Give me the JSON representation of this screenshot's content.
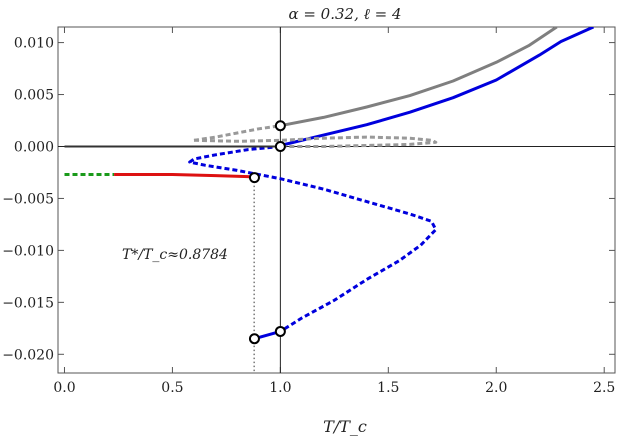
{
  "chart_data": {
    "type": "line",
    "title": "α = 0.32, ℓ = 4",
    "xlabel": "T/T_c",
    "ylabel": "",
    "xlim": [
      -0.03,
      2.55
    ],
    "ylim": [
      -0.0218,
      0.0115
    ],
    "x_ticks": [
      0.0,
      0.5,
      1.0,
      1.5,
      2.0,
      2.5
    ],
    "x_tick_labels": [
      "0.0",
      "0.5",
      "1.0",
      "1.5",
      "2.0",
      "2.5"
    ],
    "y_ticks": [
      0.01,
      0.005,
      0.0,
      -0.005,
      -0.01,
      -0.015,
      -0.02
    ],
    "y_tick_labels": [
      "0.010",
      "0.005",
      "0.000",
      "−0.005",
      "−0.010",
      "−0.015",
      "−0.020"
    ],
    "annotation": "T*/T_c≈0.8784",
    "reference_lines": {
      "vertical_x": 1.0,
      "horizontal_y": 0.0,
      "dotted_vertical_x": 0.8784
    },
    "series": [
      {
        "color": "#7f7f7f",
        "style": "solid",
        "points": [
          [
            1.0,
            0.002
          ],
          [
            1.2,
            0.0028
          ],
          [
            1.4,
            0.0038
          ],
          [
            1.6,
            0.0049
          ],
          [
            1.8,
            0.0063
          ],
          [
            2.0,
            0.0081
          ],
          [
            2.15,
            0.0097
          ],
          [
            2.28,
            0.0115
          ]
        ]
      },
      {
        "color": "#0000dd",
        "style": "solid",
        "points": [
          [
            1.0,
            0.0001
          ],
          [
            1.2,
            0.0011
          ],
          [
            1.4,
            0.0021
          ],
          [
            1.6,
            0.0033
          ],
          [
            1.8,
            0.0047
          ],
          [
            2.0,
            0.0064
          ],
          [
            2.2,
            0.0088
          ],
          [
            2.3,
            0.0101
          ],
          [
            2.45,
            0.0115
          ]
        ]
      },
      {
        "color": "#999999",
        "style": "dashed",
        "points": [
          [
            0.6,
            0.0006
          ],
          [
            0.7,
            0.0009
          ],
          [
            0.8,
            0.0013
          ],
          [
            0.9,
            0.0017
          ],
          [
            1.0,
            0.002
          ]
        ]
      },
      {
        "color": "#999999",
        "style": "dashed",
        "points": [
          [
            0.6,
            0.0006
          ],
          [
            0.8,
            0.0005
          ],
          [
            1.0,
            0.0006
          ],
          [
            1.2,
            0.0008
          ],
          [
            1.4,
            0.0009
          ],
          [
            1.6,
            0.0008
          ],
          [
            1.7,
            0.0006
          ],
          [
            1.72,
            0.0004
          ],
          [
            1.6,
            0.0002
          ],
          [
            1.4,
            0.0001
          ],
          [
            1.2,
            0.0
          ],
          [
            1.0,
            0.0
          ]
        ]
      },
      {
        "color": "#0000dd",
        "style": "dashed",
        "points": [
          [
            1.0,
            0.0
          ],
          [
            0.85,
            -0.0003
          ],
          [
            0.7,
            -0.0008
          ],
          [
            0.6,
            -0.0012
          ],
          [
            0.58,
            -0.0015
          ],
          [
            0.65,
            -0.0018
          ],
          [
            0.8,
            -0.0023
          ],
          [
            1.0,
            -0.0031
          ],
          [
            1.2,
            -0.0041
          ],
          [
            1.4,
            -0.0053
          ],
          [
            1.6,
            -0.0065
          ],
          [
            1.7,
            -0.0072
          ],
          [
            1.72,
            -0.008
          ],
          [
            1.65,
            -0.0095
          ],
          [
            1.55,
            -0.011
          ],
          [
            1.4,
            -0.0128
          ],
          [
            1.25,
            -0.0148
          ],
          [
            1.1,
            -0.0165
          ],
          [
            1.0,
            -0.0178
          ]
        ]
      },
      {
        "color": "#0000dd",
        "style": "solid",
        "points": [
          [
            0.88,
            -0.0185
          ],
          [
            1.0,
            -0.0178
          ]
        ]
      },
      {
        "color": "#1a9a1a",
        "style": "dashed",
        "points": [
          [
            0.0,
            -0.0027
          ],
          [
            0.23,
            -0.0027
          ]
        ]
      },
      {
        "color": "#dd1111",
        "style": "solid",
        "points": [
          [
            0.23,
            -0.0027
          ],
          [
            0.5,
            -0.0027
          ],
          [
            0.7,
            -0.0028
          ],
          [
            0.85,
            -0.0029
          ],
          [
            0.88,
            -0.003
          ]
        ]
      },
      {
        "color": "#333333",
        "style": "solid",
        "points": [
          [
            0.0,
            0.0
          ],
          [
            1.0,
            0.0
          ]
        ]
      }
    ],
    "markers": [
      [
        1.0,
        0.002
      ],
      [
        1.0,
        0.0
      ],
      [
        0.88,
        -0.003
      ],
      [
        0.88,
        -0.0185
      ],
      [
        1.0,
        -0.0178
      ]
    ]
  }
}
